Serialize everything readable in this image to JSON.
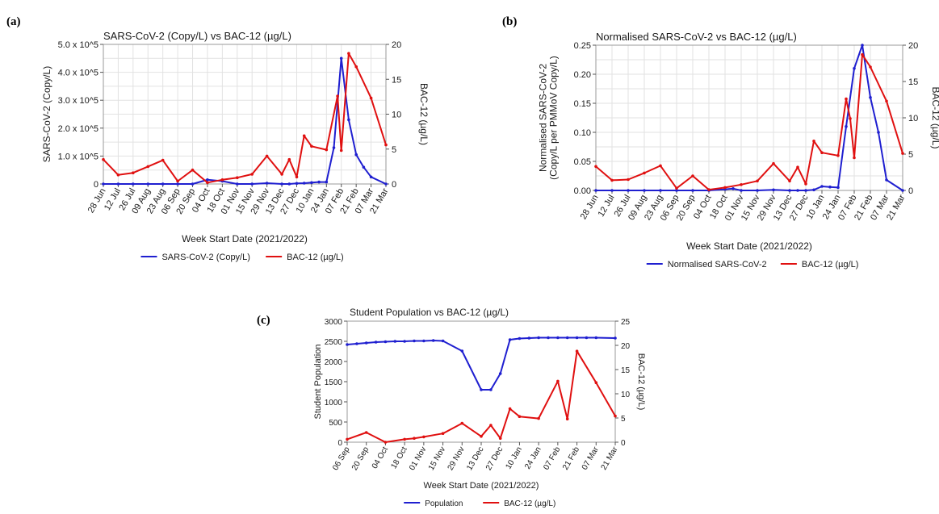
{
  "figure": {
    "panel_labels": [
      "(a)",
      "(b)",
      "(c)"
    ]
  },
  "chart_data": [
    {
      "type": "line",
      "panel": "(a)",
      "title": "SARS-CoV-2 (Copy/L) vs BAC-12 (µg/L)",
      "xlabel": "Week Start Date (2021/2022)",
      "ylabel": "SARS-CoV-2 (Copy/L)",
      "y2label": "BAC-12 (µg/L)",
      "x_ticks": [
        "28 Jun",
        "12 Jul",
        "26 Jul",
        "09 Aug",
        "23 Aug",
        "06 Sep",
        "20 Sep",
        "04 Oct",
        "18 Oct",
        "01 Nov",
        "15 Nov",
        "29 Nov",
        "13 Dec",
        "27 Dec",
        "10 Jan",
        "24 Jan",
        "07 Feb",
        "21 Feb",
        "07 Mar",
        "21 Mar"
      ],
      "ylim": [
        0,
        500000
      ],
      "y_tick_labels": [
        "0",
        "1.0 x 10^5",
        "2.0 x 10^5",
        "3.0 x 10^5",
        "4.0 x 10^5",
        "5.0 x 10^5"
      ],
      "y2lim": [
        0,
        20
      ],
      "y2_tick_labels": [
        "0",
        "5",
        "10",
        "15",
        "20"
      ],
      "grid": true,
      "legend_position": "bottom",
      "series": [
        {
          "name": "SARS-CoV-2 (Copy/L)",
          "color": "#1f1fd0",
          "axis": "left",
          "x": [
            0,
            1,
            2,
            3,
            4,
            5,
            6,
            7,
            8,
            9,
            10,
            11,
            12,
            12.5,
            13,
            13.5,
            14,
            14.5,
            15,
            15.5,
            16,
            16.5,
            17,
            17.5,
            18,
            19
          ],
          "values": [
            0,
            0,
            0,
            0,
            0,
            0,
            0,
            15000,
            10000,
            0,
            0,
            3000,
            0,
            0,
            2000,
            3000,
            5000,
            7000,
            7000,
            130000,
            450000,
            230000,
            105000,
            60000,
            25000,
            0
          ]
        },
        {
          "name": "BAC-12 (µg/L)",
          "color": "#e01010",
          "axis": "right",
          "x": [
            0,
            1,
            2,
            3,
            4,
            5,
            6,
            7,
            8,
            9,
            10,
            11,
            12,
            12.5,
            13,
            13.5,
            14,
            15,
            15.75,
            16,
            16.5,
            17,
            18,
            19
          ],
          "values": [
            3.5,
            1.3,
            1.6,
            2.5,
            3.4,
            0.4,
            2,
            0.2,
            0.6,
            0.9,
            1.4,
            4,
            1.4,
            3.5,
            1,
            6.9,
            5.4,
            4.9,
            12.6,
            4.8,
            18.7,
            16.8,
            12.3,
            5.6
          ]
        }
      ]
    },
    {
      "type": "line",
      "panel": "(b)",
      "title": "Normalised SARS-CoV-2 vs BAC-12 (µg/L)",
      "xlabel": "Week Start Date (2021/2022)",
      "ylabel": "Normalised SARS-CoV-2\n(Copy/L per PMMoV Copy/L)",
      "y2label": "BAC-12 (µg/L)",
      "x_ticks": [
        "28 Jun",
        "12 Jul",
        "26 Jul",
        "09 Aug",
        "23 Aug",
        "06 Sep",
        "20 Sep",
        "04 Oct",
        "18 Oct",
        "01 Nov",
        "15 Nov",
        "29 Nov",
        "13 Dec",
        "27 Dec",
        "10 Jan",
        "24 Jan",
        "07 Feb",
        "21 Feb",
        "07 Mar",
        "21 Mar"
      ],
      "ylim": [
        0,
        0.25
      ],
      "y_tick_labels": [
        "0.00",
        "0.05",
        "0.10",
        "0.15",
        "0.20",
        "0.25"
      ],
      "y2lim": [
        0,
        20
      ],
      "y2_tick_labels": [
        "0",
        "5",
        "10",
        "15",
        "20"
      ],
      "grid": true,
      "legend_position": "bottom",
      "series": [
        {
          "name": "Normalised SARS-CoV-2",
          "color": "#1f1fd0",
          "axis": "left",
          "x": [
            0,
            1,
            2,
            3,
            4,
            5,
            6,
            7,
            8,
            8.5,
            9,
            10,
            11,
            12,
            12.5,
            13,
            13.5,
            14,
            14.5,
            15,
            15.5,
            16,
            16.5,
            17,
            17.5,
            18,
            19
          ],
          "values": [
            0,
            0,
            0,
            0,
            0,
            0,
            0,
            0,
            0.002,
            0.003,
            0,
            0,
            0.001,
            0,
            0,
            0,
            0.001,
            0.007,
            0.006,
            0.005,
            0.11,
            0.21,
            0.25,
            0.16,
            0.1,
            0.018,
            0
          ]
        },
        {
          "name": "BAC-12 (µg/L)",
          "color": "#e01010",
          "axis": "right",
          "x": [
            0,
            1,
            2,
            3,
            4,
            5,
            6,
            7,
            8,
            9,
            10,
            11,
            12,
            12.5,
            13,
            13.5,
            14,
            15,
            15.5,
            15.75,
            16,
            16.5,
            17,
            18,
            19
          ],
          "values": [
            3.3,
            1.4,
            1.5,
            2.4,
            3.4,
            0.3,
            2,
            0.1,
            0.4,
            0.8,
            1.3,
            3.7,
            1.3,
            3.2,
            0.9,
            6.8,
            5.2,
            4.8,
            12.6,
            9.9,
            4.5,
            18.7,
            17,
            12.3,
            5.1
          ]
        }
      ]
    },
    {
      "type": "line",
      "panel": "(c)",
      "title": "Student Population vs BAC-12 (µg/L)",
      "xlabel": "Week Start Date (2021/2022)",
      "ylabel": "Student Population",
      "y2label": "BAC-12 (µg/L)",
      "x_ticks": [
        "06 Sep",
        "20 Sep",
        "04 Oct",
        "18 Oct",
        "01 Nov",
        "15 Nov",
        "29 Nov",
        "13 Dec",
        "27 Dec",
        "10 Jan",
        "24 Jan",
        "07 Feb",
        "21 Feb",
        "07 Mar",
        "21 Mar"
      ],
      "ylim": [
        0,
        3000
      ],
      "y_tick_labels": [
        "0",
        "500",
        "1000",
        "1500",
        "2000",
        "2500",
        "3000"
      ],
      "y2lim": [
        0,
        25
      ],
      "y2_tick_labels": [
        "0",
        "5",
        "10",
        "15",
        "20",
        "25"
      ],
      "grid": false,
      "legend_position": "bottom",
      "series": [
        {
          "name": "Population",
          "color": "#1f1fd0",
          "axis": "left",
          "x": [
            0,
            0.5,
            1,
            1.5,
            2,
            2.5,
            3,
            3.5,
            4,
            4.5,
            5,
            6,
            7,
            7.5,
            8,
            8.5,
            9,
            9.5,
            10,
            10.5,
            11,
            11.5,
            12,
            12.5,
            13,
            14
          ],
          "values": [
            2420,
            2440,
            2460,
            2480,
            2490,
            2500,
            2500,
            2510,
            2510,
            2520,
            2510,
            2260,
            1300,
            1300,
            1700,
            2540,
            2570,
            2580,
            2590,
            2590,
            2590,
            2590,
            2590,
            2590,
            2590,
            2580
          ]
        },
        {
          "name": "BAC-12 (µg/L)",
          "color": "#e01010",
          "axis": "right",
          "x": [
            0,
            1,
            2,
            3,
            3.5,
            4,
            5,
            6,
            7,
            7.5,
            8,
            8.5,
            9,
            10,
            11,
            11.5,
            12,
            13,
            14
          ],
          "values": [
            0.6,
            2,
            0,
            0.6,
            0.8,
            1.1,
            1.8,
            3.9,
            1.2,
            3.5,
            0.8,
            6.9,
            5.3,
            4.9,
            12.6,
            4.8,
            18.8,
            12.3,
            5.4
          ]
        }
      ]
    }
  ]
}
